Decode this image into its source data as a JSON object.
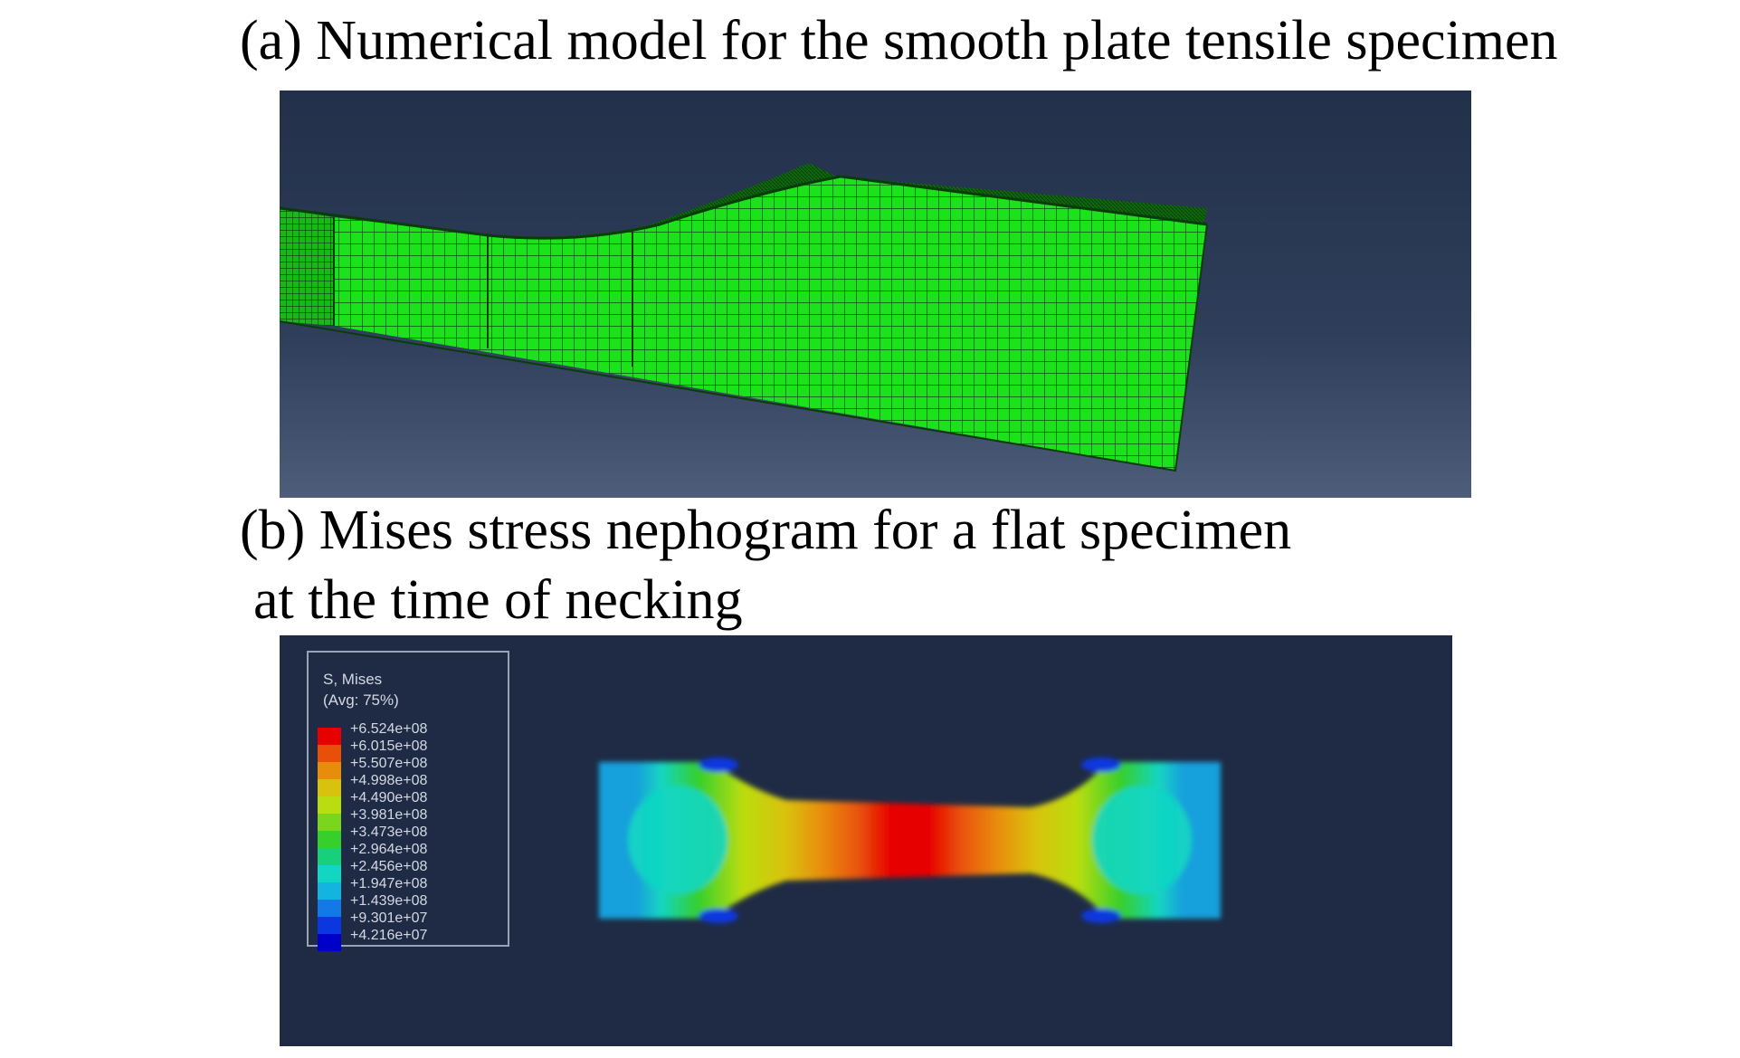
{
  "captions": {
    "a": "(a) Numerical model for the smooth plate tensile specimen",
    "b_line1": "(b) Mises stress nephogram for a flat specimen",
    "b_line2": "at the time of necking"
  },
  "legend": {
    "title": "S, Mises",
    "subtitle": "(Avg: 75%)",
    "values": [
      "+6.524e+08",
      "+6.015e+08",
      "+5.507e+08",
      "+4.998e+08",
      "+4.490e+08",
      "+3.981e+08",
      "+3.473e+08",
      "+2.964e+08",
      "+2.456e+08",
      "+1.947e+08",
      "+1.439e+08",
      "+9.301e+07",
      "+4.216e+07"
    ],
    "colors": [
      "#e60000",
      "#e8500a",
      "#e88c0c",
      "#d9c20e",
      "#b9dd10",
      "#7ad61c",
      "#36cf2c",
      "#18d07a",
      "#12d6c2",
      "#14b4e0",
      "#1279e6",
      "#0a37e0",
      "#0000c8"
    ]
  },
  "colors": {
    "mesh_fill": "#1be21b",
    "mesh_line": "#0b4a0b",
    "viewport_top": "#22304a",
    "viewport_bottom": "#4a5b78",
    "panel_b_bg": "#1f2b45"
  }
}
